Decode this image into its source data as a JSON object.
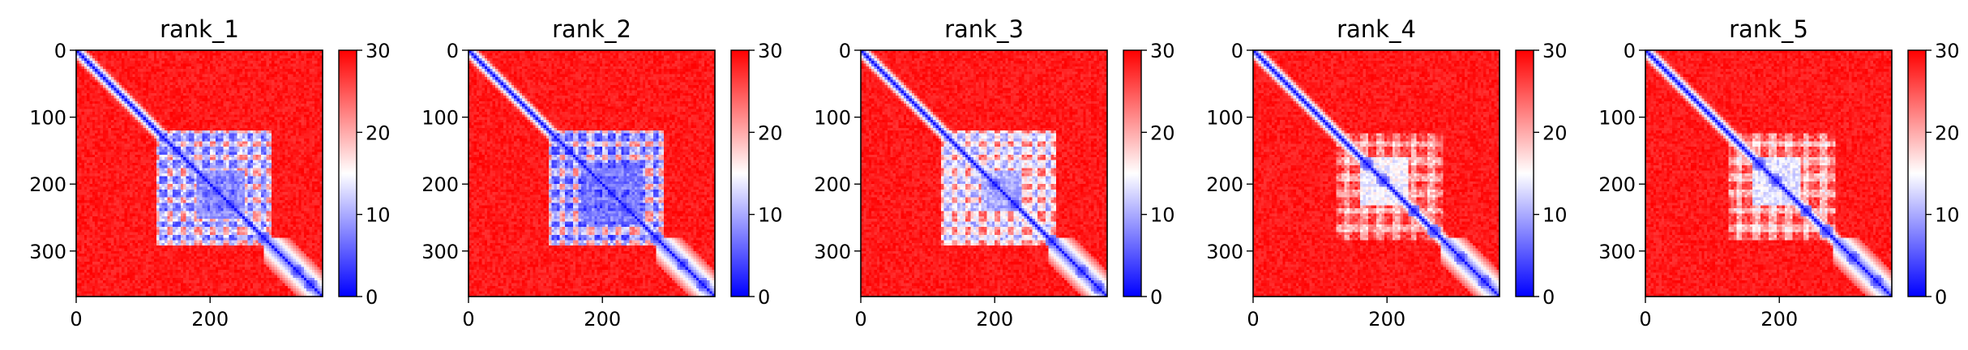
{
  "figure": {
    "colorbar": {
      "cmap": "bwr",
      "vmin": 0,
      "vmax": 30,
      "ticks": [
        "0",
        "10",
        "20",
        "30"
      ],
      "colors": {
        "low": "#0000ff",
        "mid": "#ffffff",
        "high": "#ff0000"
      }
    }
  },
  "chart_data": [
    {
      "type": "heatmap",
      "title": "rank_1",
      "x_ticks": [
        "0",
        "200"
      ],
      "y_ticks": [
        "0",
        "100",
        "200",
        "300"
      ],
      "xlim": [
        0,
        368
      ],
      "ylim": [
        368,
        0
      ],
      "matrix_size": 368,
      "features": {
        "diagonal_value": 1,
        "background_value": 30,
        "block_range": [
          120,
          290
        ],
        "block_strength": 0.95,
        "hub_blocks": [
          [
            180,
            250,
            6
          ]
        ],
        "grid_lines": [
          130,
          150,
          170,
          195,
          215,
          235,
          260,
          280
        ],
        "diagonal_beads": [
          210,
          230,
          280,
          330,
          350
        ]
      }
    },
    {
      "type": "heatmap",
      "title": "rank_2",
      "x_ticks": [
        "0",
        "200"
      ],
      "y_ticks": [
        "0",
        "100",
        "200",
        "300"
      ],
      "xlim": [
        0,
        368
      ],
      "ylim": [
        368,
        0
      ],
      "matrix_size": 368,
      "features": {
        "diagonal_value": 1,
        "background_value": 30,
        "block_range": [
          120,
          290
        ],
        "block_strength": 1.0,
        "hub_blocks": [
          [
            170,
            260,
            5
          ]
        ],
        "grid_lines": [
          130,
          150,
          170,
          195,
          215,
          235,
          260,
          280
        ],
        "diagonal_beads": [
          215,
          240,
          280,
          320,
          350
        ]
      }
    },
    {
      "type": "heatmap",
      "title": "rank_3",
      "x_ticks": [
        "0",
        "200"
      ],
      "y_ticks": [
        "0",
        "100",
        "200",
        "300"
      ],
      "xlim": [
        0,
        368
      ],
      "ylim": [
        368,
        0
      ],
      "matrix_size": 368,
      "features": {
        "diagonal_value": 1,
        "background_value": 30,
        "block_range": [
          120,
          290
        ],
        "block_strength": 0.8,
        "hub_blocks": [
          [
            180,
            240,
            8
          ]
        ],
        "grid_lines": [
          130,
          150,
          170,
          195,
          215,
          235,
          260,
          280
        ],
        "diagonal_beads": [
          200,
          230,
          285,
          330,
          355
        ]
      }
    },
    {
      "type": "heatmap",
      "title": "rank_4",
      "x_ticks": [
        "0",
        "200"
      ],
      "y_ticks": [
        "0",
        "100",
        "200",
        "300"
      ],
      "xlim": [
        0,
        368
      ],
      "ylim": [
        368,
        0
      ],
      "matrix_size": 368,
      "features": {
        "diagonal_value": 1,
        "background_value": 30,
        "block_range": [
          125,
          285
        ],
        "block_strength": 0.55,
        "hub_blocks": [
          [
            160,
            230,
            12
          ]
        ],
        "grid_lines": [
          140,
          165,
          190,
          215,
          240,
          265
        ],
        "diagonal_beads": [
          170,
          195,
          240,
          270,
          310,
          345
        ]
      }
    },
    {
      "type": "heatmap",
      "title": "rank_5",
      "x_ticks": [
        "0",
        "200"
      ],
      "y_ticks": [
        "0",
        "100",
        "200",
        "300"
      ],
      "xlim": [
        0,
        368
      ],
      "ylim": [
        368,
        0
      ],
      "matrix_size": 368,
      "features": {
        "diagonal_value": 1,
        "background_value": 30,
        "block_range": [
          125,
          285
        ],
        "block_strength": 0.6,
        "hub_blocks": [
          [
            160,
            230,
            11
          ]
        ],
        "grid_lines": [
          140,
          165,
          190,
          215,
          240,
          265
        ],
        "diagonal_beads": [
          170,
          195,
          240,
          270,
          310,
          345
        ]
      }
    }
  ]
}
